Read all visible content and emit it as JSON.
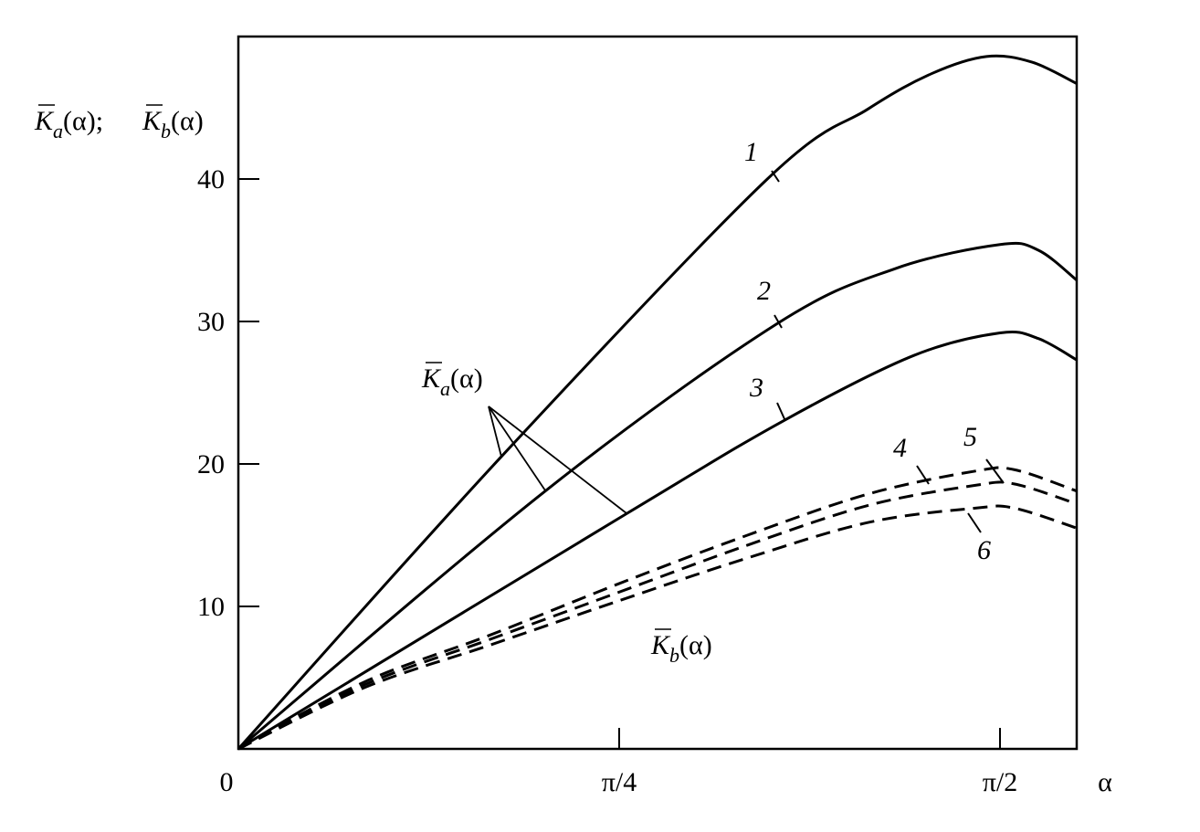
{
  "chart_data": {
    "type": "line",
    "title": "",
    "xlabel": "α",
    "ylabel": {
      "parts": [
        {
          "symbol": "K",
          "subscript": "a",
          "arg": "(α);"
        },
        {
          "symbol": "K",
          "subscript": "b",
          "arg": "(α)"
        }
      ]
    },
    "xlim": [
      0,
      1.729
    ],
    "ylim": [
      0,
      50
    ],
    "grid": false,
    "x_ticks": [
      {
        "value": 0,
        "label": "0"
      },
      {
        "value": 0.7854,
        "label": "π/4"
      },
      {
        "value": 1.5708,
        "label": "π/2"
      }
    ],
    "y_ticks": [
      {
        "value": 10,
        "label": "10"
      },
      {
        "value": 20,
        "label": "20"
      },
      {
        "value": 30,
        "label": "30"
      },
      {
        "value": 40,
        "label": "40"
      }
    ],
    "series": [
      {
        "name": "1",
        "style": "solid",
        "points": [
          [
            0,
            0
          ],
          [
            0.542,
            20.5
          ],
          [
            1.091,
            40
          ],
          [
            1.298,
            44.9
          ],
          [
            1.43,
            47.4
          ],
          [
            1.543,
            48.6
          ],
          [
            1.637,
            48.2
          ],
          [
            1.729,
            46.7
          ]
        ]
      },
      {
        "name": "2",
        "style": "solid",
        "points": [
          [
            0,
            0
          ],
          [
            0.633,
            18.1
          ],
          [
            1.109,
            29.8
          ],
          [
            1.354,
            33.7
          ],
          [
            1.571,
            35.4
          ],
          [
            1.65,
            35.0
          ],
          [
            1.729,
            32.9
          ]
        ]
      },
      {
        "name": "3",
        "style": "solid",
        "points": [
          [
            0,
            0
          ],
          [
            0.8,
            16.5
          ],
          [
            1.128,
            23.1
          ],
          [
            1.392,
            27.6
          ],
          [
            1.571,
            29.2
          ],
          [
            1.65,
            28.8
          ],
          [
            1.729,
            27.3
          ]
        ]
      },
      {
        "name": "4",
        "style": "dashed",
        "points": [
          [
            0,
            0
          ],
          [
            0.26,
            4.7
          ],
          [
            0.52,
            8.0
          ],
          [
            0.785,
            11.6
          ],
          [
            1.05,
            15.0
          ],
          [
            1.3,
            17.9
          ],
          [
            1.52,
            19.5
          ],
          [
            1.6,
            19.6
          ],
          [
            1.729,
            18.1
          ]
        ]
      },
      {
        "name": "5",
        "style": "dashed",
        "points": [
          [
            0,
            0
          ],
          [
            0.26,
            4.5
          ],
          [
            0.52,
            7.7
          ],
          [
            0.785,
            11.0
          ],
          [
            1.05,
            14.3
          ],
          [
            1.3,
            17.1
          ],
          [
            1.52,
            18.5
          ],
          [
            1.6,
            18.6
          ],
          [
            1.729,
            17.2
          ]
        ]
      },
      {
        "name": "6",
        "style": "dashed",
        "points": [
          [
            0,
            0
          ],
          [
            0.26,
            4.3
          ],
          [
            0.52,
            7.3
          ],
          [
            0.785,
            10.4
          ],
          [
            1.05,
            13.4
          ],
          [
            1.3,
            15.9
          ],
          [
            1.52,
            16.9
          ],
          [
            1.6,
            16.9
          ],
          [
            1.729,
            15.5
          ]
        ]
      }
    ],
    "annotations": [
      {
        "symbol": "K",
        "subscript": "a",
        "arg": "(α)",
        "refers_to": [
          "1",
          "2",
          "3"
        ]
      },
      {
        "symbol": "K",
        "subscript": "b",
        "arg": "(α)",
        "refers_to": [
          "4",
          "5",
          "6"
        ]
      }
    ],
    "colors": {
      "line": "#000000",
      "background": "#ffffff"
    }
  }
}
